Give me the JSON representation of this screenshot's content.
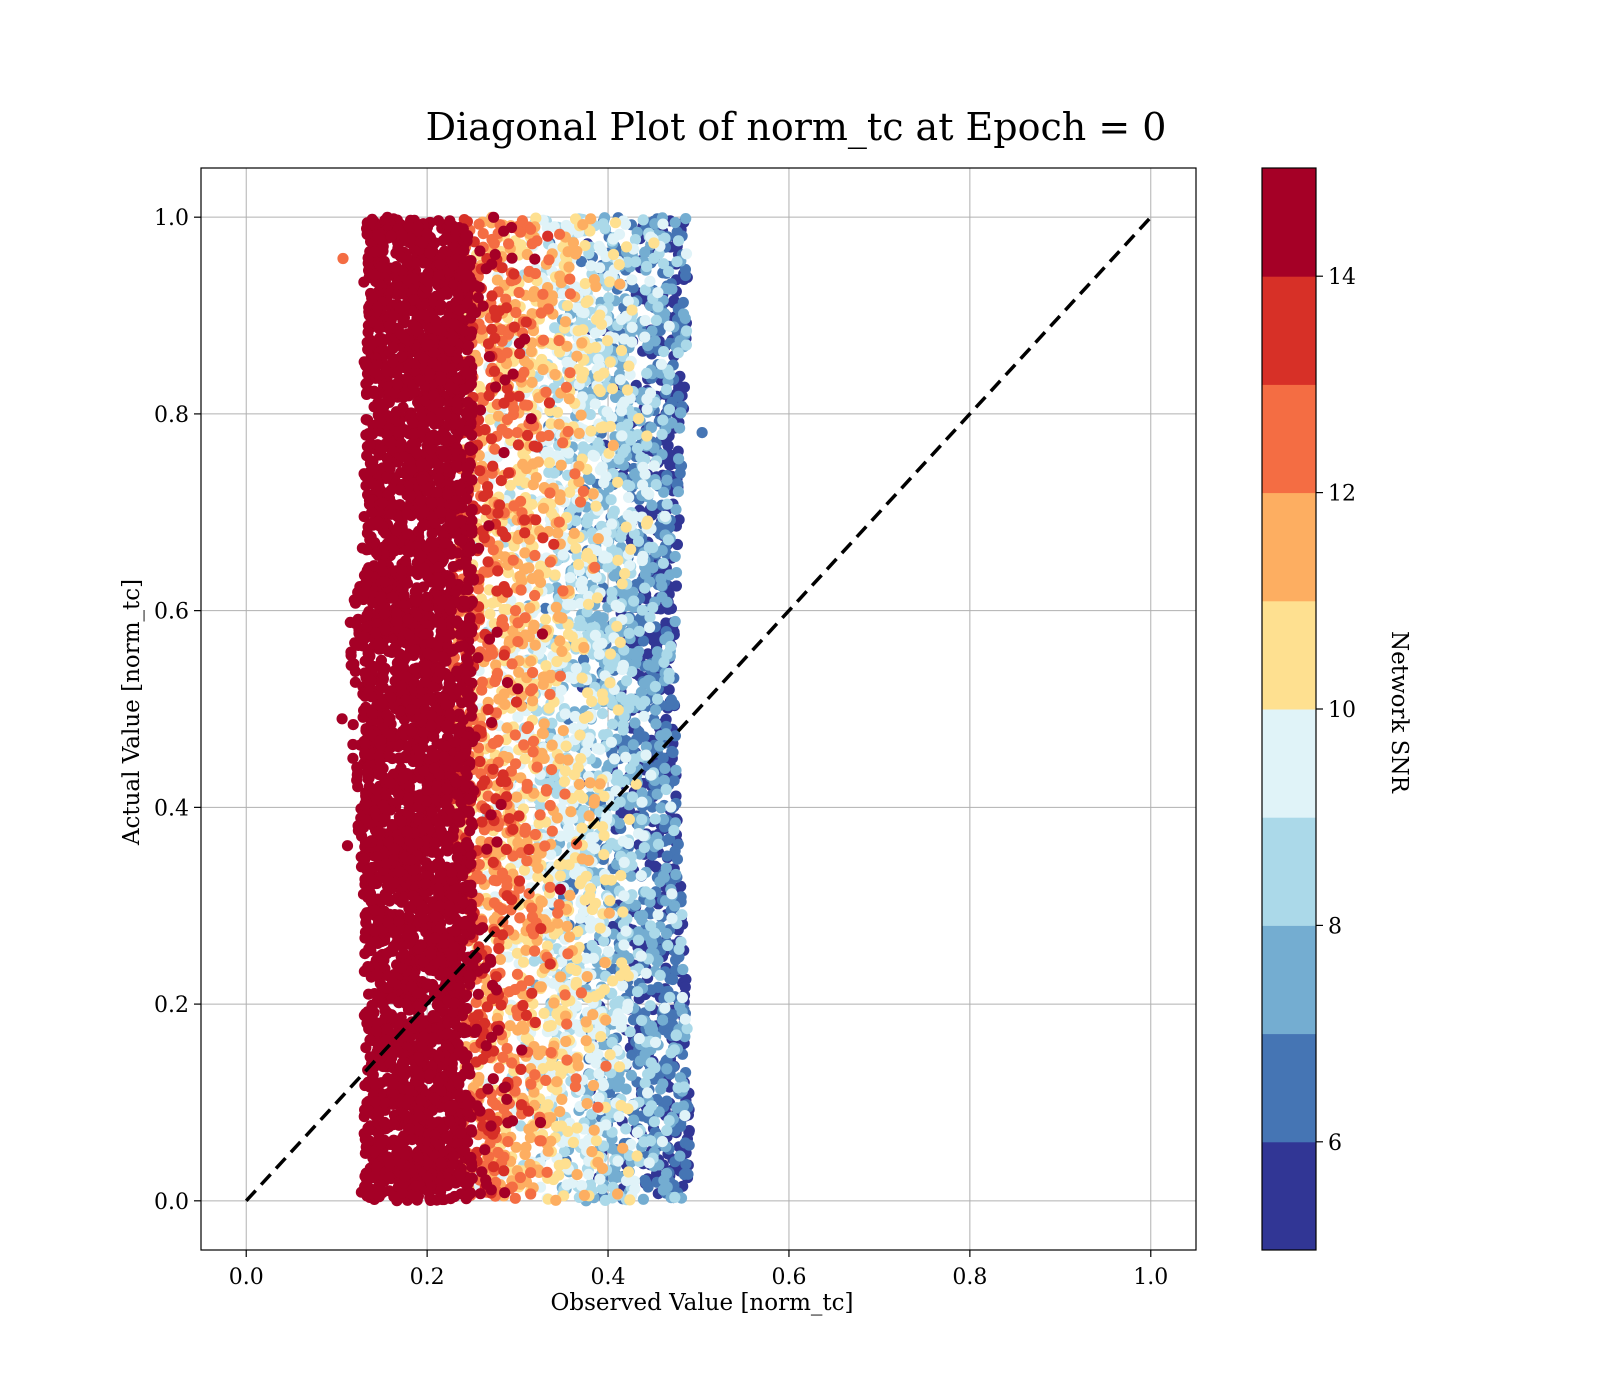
{
  "chart_data": {
    "type": "scatter",
    "title": "Diagonal Plot of norm_tc at Epoch = 0",
    "xlabel": "Observed Value [norm_tc]",
    "ylabel": "Actual Value [norm_tc]",
    "xlim": [
      -0.05,
      1.05
    ],
    "ylim": [
      -0.05,
      1.05
    ],
    "xticks": [
      "0.0",
      "0.2",
      "0.4",
      "0.6",
      "0.8",
      "1.0"
    ],
    "yticks": [
      "0.0",
      "0.2",
      "0.4",
      "0.6",
      "0.8",
      "1.0"
    ],
    "grid": true,
    "reference_line": {
      "style": "dashed",
      "color": "#000000",
      "from": [
        0,
        0
      ],
      "to": [
        1,
        1
      ]
    },
    "points": {
      "x_range": [
        0.11,
        0.5
      ],
      "y_range": [
        0.0,
        1.0
      ],
      "color_trend": "high SNR (dark red) at low observed values; SNR decreases toward observed ≈ 0.49",
      "notable_outliers": [
        [
          0.107,
          0.958
        ],
        [
          0.115,
          0.588
        ],
        [
          0.106,
          0.49
        ],
        [
          0.112,
          0.361
        ],
        [
          0.504,
          0.781
        ]
      ]
    },
    "colorbar": {
      "label": "Network SNR",
      "range": [
        5,
        15
      ],
      "ticks": [
        "6",
        "8",
        "10",
        "12",
        "14"
      ],
      "colors": [
        "#313695",
        "#4575b4",
        "#74add1",
        "#abd9e9",
        "#e0f3f8",
        "#fee090",
        "#fdae61",
        "#f46d43",
        "#d73027",
        "#a50026"
      ]
    }
  }
}
